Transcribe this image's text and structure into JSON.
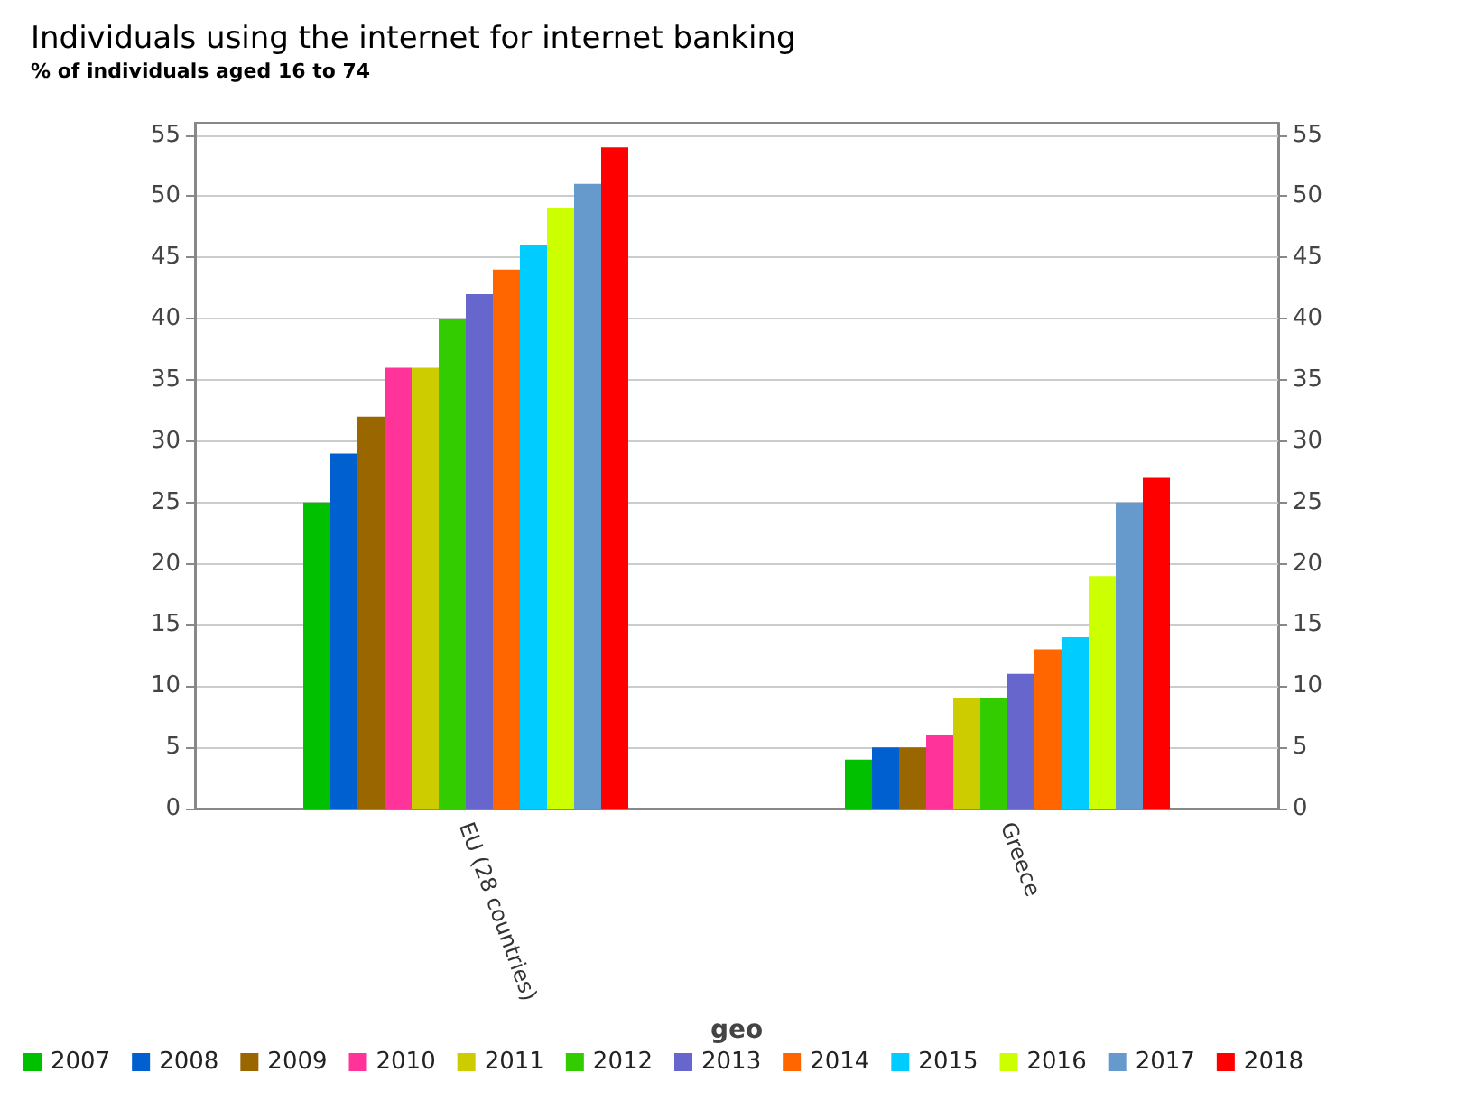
{
  "chart_data": {
    "type": "bar",
    "title": "Individuals using the internet for internet banking",
    "subtitle": "% of individuals aged 16 to 74",
    "xlabel": "geo",
    "categories": [
      "EU (28 countries)",
      "Greece"
    ],
    "series": [
      {
        "name": "2007",
        "color": "#00c000",
        "values": [
          25,
          4
        ]
      },
      {
        "name": "2008",
        "color": "#0060d0",
        "values": [
          29,
          5
        ]
      },
      {
        "name": "2009",
        "color": "#996600",
        "values": [
          32,
          5
        ]
      },
      {
        "name": "2010",
        "color": "#ff3399",
        "values": [
          36,
          6
        ]
      },
      {
        "name": "2011",
        "color": "#cccc00",
        "values": [
          36,
          9
        ]
      },
      {
        "name": "2012",
        "color": "#33cc00",
        "values": [
          40,
          9
        ]
      },
      {
        "name": "2013",
        "color": "#6666cc",
        "values": [
          42,
          11
        ]
      },
      {
        "name": "2014",
        "color": "#ff6600",
        "values": [
          44,
          13
        ]
      },
      {
        "name": "2015",
        "color": "#00ccff",
        "values": [
          46,
          14
        ]
      },
      {
        "name": "2016",
        "color": "#ccff00",
        "values": [
          49,
          19
        ]
      },
      {
        "name": "2017",
        "color": "#6699cc",
        "values": [
          51,
          25
        ]
      },
      {
        "name": "2018",
        "color": "#ff0000",
        "values": [
          54,
          27
        ]
      }
    ],
    "ylim": [
      0,
      56
    ],
    "yticks": [
      0,
      5,
      10,
      15,
      20,
      25,
      30,
      35,
      40,
      45,
      50,
      55
    ],
    "y2lim": [
      0,
      56
    ],
    "y2ticks": [
      0,
      5,
      10,
      15,
      20,
      25,
      30,
      35,
      40,
      45,
      50,
      55
    ],
    "grid": "y",
    "legend": "bottom"
  }
}
